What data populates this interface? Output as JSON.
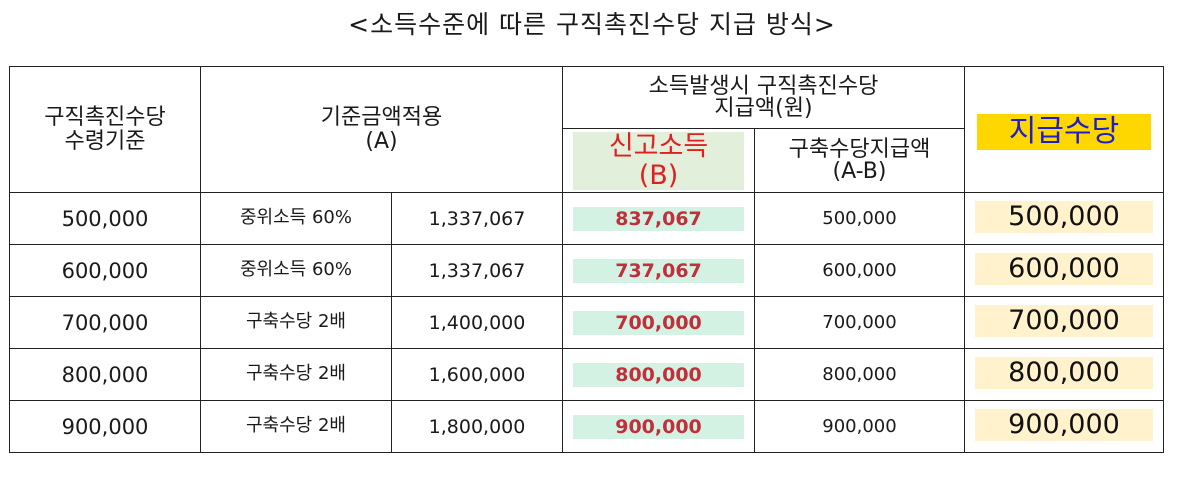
{
  "title": "<소득수준에 따른 구직촉진수당 지급 방식>",
  "header": {
    "basis": "구직촉진수당\n수령기준",
    "applied": "기준금액적용\n(A)",
    "group": "소득발생시  구직촉진수당\n지급액(원)",
    "reported_income": "신고소득\n(B)",
    "calc": "구축수당지급액\n(A-B)",
    "payment": "지급수당"
  },
  "colors": {
    "payment_badge_bg": "#ffd700",
    "payment_badge_text": "#1f1fc7",
    "income_header_bg": "#e2efda",
    "income_header_text": "#e02020",
    "income_cell_bg": "#d4f2e4",
    "income_cell_text": "#c0303a",
    "payment_cell_bg": "#fff2cc"
  },
  "rows": [
    {
      "standard": "500,000",
      "criteria": "중위소득 60%",
      "applied": "1,337,067",
      "income": "837,067",
      "calc": "500,000",
      "payment": "500,000"
    },
    {
      "standard": "600,000",
      "criteria": "중위소득 60%",
      "applied": "1,337,067",
      "income": "737,067",
      "calc": "600,000",
      "payment": "600,000"
    },
    {
      "standard": "700,000",
      "criteria": "구축수당 2배",
      "applied": "1,400,000",
      "income": "700,000",
      "calc": "700,000",
      "payment": "700,000"
    },
    {
      "standard": "800,000",
      "criteria": "구축수당 2배",
      "applied": "1,600,000",
      "income": "800,000",
      "calc": "800,000",
      "payment": "800,000"
    },
    {
      "standard": "900,000",
      "criteria": "구축수당 2배",
      "applied": "1,800,000",
      "income": "900,000",
      "calc": "900,000",
      "payment": "900,000"
    }
  ]
}
